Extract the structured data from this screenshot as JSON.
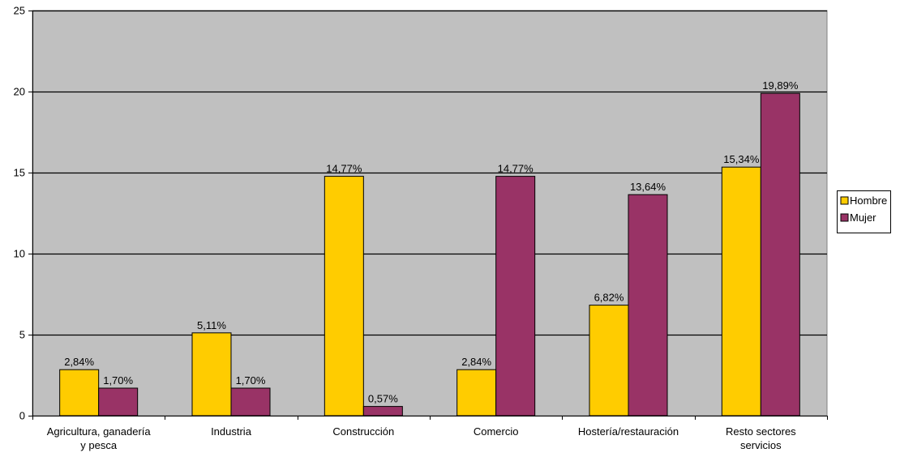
{
  "chart_data": {
    "type": "bar",
    "categories": [
      [
        "Agricultura, ganadería",
        "y pesca"
      ],
      [
        "Industria"
      ],
      [
        "Construcción"
      ],
      [
        "Comercio"
      ],
      [
        "Hostería/restauración"
      ],
      [
        "Resto sectores",
        "servicios"
      ]
    ],
    "series": [
      {
        "name": "Hombre",
        "color": "#FFCC00",
        "values": [
          2.84,
          5.11,
          14.77,
          2.84,
          6.82,
          15.34
        ],
        "labels": [
          "2,84%",
          "5,11%",
          "14,77%",
          "2,84%",
          "6,82%",
          "15,34%"
        ]
      },
      {
        "name": "Mujer",
        "color": "#993366",
        "values": [
          1.7,
          1.7,
          0.57,
          14.77,
          13.64,
          19.89
        ],
        "labels": [
          "1,70%",
          "1,70%",
          "0,57%",
          "14,77%",
          "13,64%",
          "19,89%"
        ]
      }
    ],
    "yticks": [
      "0",
      "5",
      "10",
      "15",
      "20",
      "25"
    ],
    "ylim": [
      0,
      25
    ],
    "plot_background": "#C0C0C0",
    "gridlines": true,
    "legend_position": "right"
  }
}
